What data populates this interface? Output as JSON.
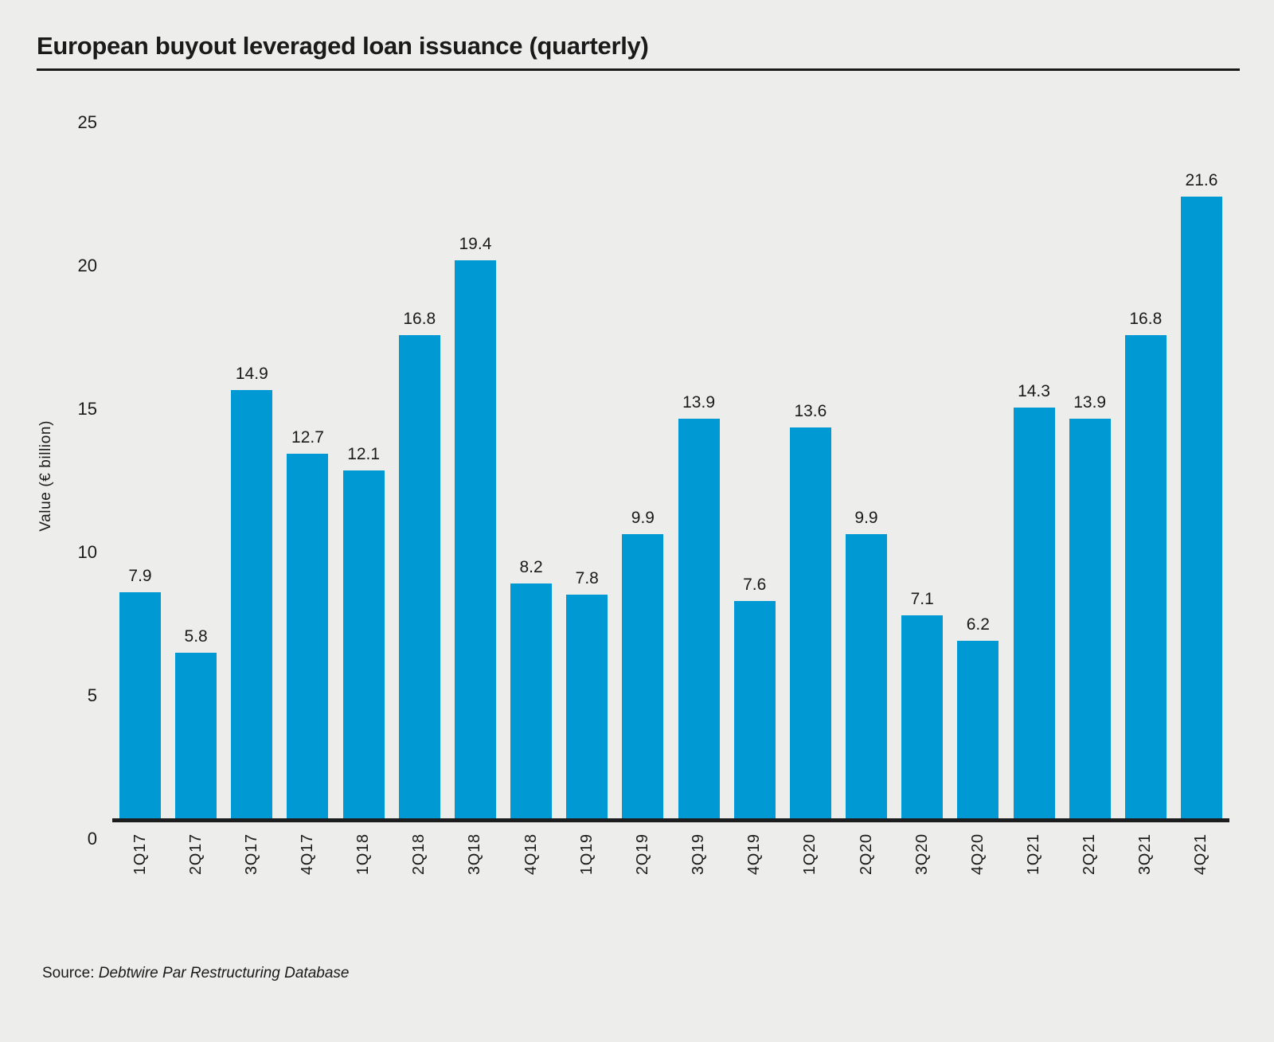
{
  "header": {
    "title": "European buyout leveraged loan issuance (quarterly)"
  },
  "footer": {
    "source_label": "Source:",
    "source_value": "Debtwire Par Restructuring Database"
  },
  "colors": {
    "background": "#EDEDEC",
    "bar": "#0099D3",
    "text": "#1A1A1A",
    "axis": "#1B1D1F"
  },
  "chart_data": {
    "type": "bar",
    "title": "European buyout leveraged loan issuance (quarterly)",
    "categories": [
      "1Q17",
      "2Q17",
      "3Q17",
      "4Q17",
      "1Q18",
      "2Q18",
      "3Q18",
      "4Q18",
      "1Q19",
      "2Q19",
      "3Q19",
      "4Q19",
      "1Q20",
      "2Q20",
      "3Q20",
      "4Q20",
      "1Q21",
      "2Q21",
      "3Q21",
      "4Q21"
    ],
    "values": [
      7.9,
      5.8,
      14.9,
      12.7,
      12.1,
      16.8,
      19.4,
      8.2,
      7.8,
      9.9,
      13.9,
      7.6,
      13.6,
      9.9,
      7.1,
      6.2,
      14.3,
      13.9,
      16.8,
      21.6
    ],
    "xlabel": "",
    "ylabel": "Value (€ billion)",
    "ylim": [
      0,
      25
    ],
    "yticks": [
      0,
      5,
      10,
      15,
      20,
      25
    ],
    "bar_color": "#0099D3",
    "grid": false,
    "legend": false,
    "data_labels": true,
    "source": "Source: Debtwire Par Restructuring Database"
  }
}
